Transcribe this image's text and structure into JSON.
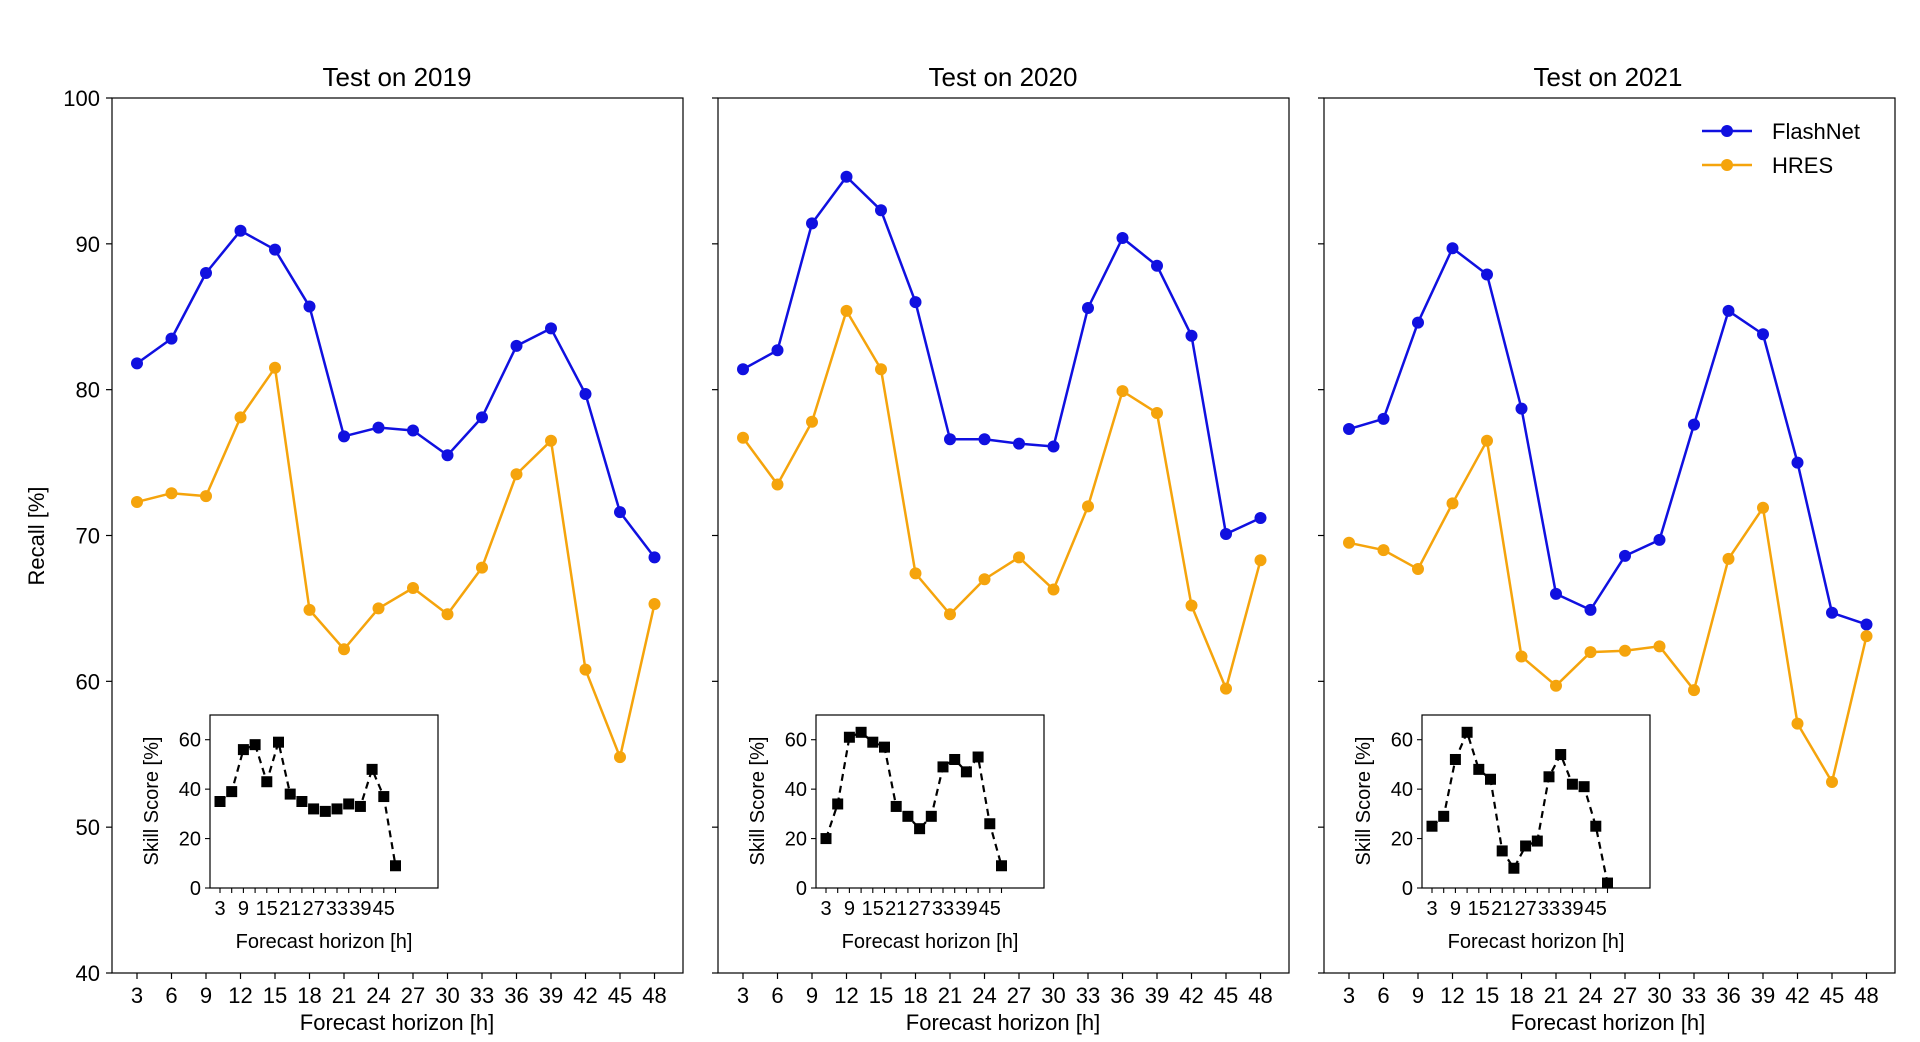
{
  "figure": {
    "y_axis_label": "Recall [%]",
    "x_axis_label": "Forecast horizon [h]",
    "legend": [
      {
        "name": "FlashNet",
        "color": "#1010e0"
      },
      {
        "name": "HRES",
        "color": "#f5a40c"
      }
    ],
    "inset_color": "#000000"
  },
  "chart_data": [
    {
      "type": "line",
      "title": "Test on 2019",
      "xlabel": "Forecast horizon [h]",
      "ylabel": "Recall [%]",
      "x": [
        3,
        6,
        9,
        12,
        15,
        18,
        21,
        24,
        27,
        30,
        33,
        36,
        39,
        42,
        45,
        48
      ],
      "x_tick_labels": [
        "3",
        "6",
        "9",
        "12",
        "15",
        "18",
        "21",
        "24",
        "27",
        "30",
        "33",
        "36",
        "39",
        "42",
        "45",
        "48"
      ],
      "ylim": [
        40,
        100
      ],
      "y_tick_labels": [
        "40",
        "50",
        "60",
        "70",
        "80",
        "90",
        "100"
      ],
      "series": [
        {
          "name": "FlashNet",
          "values": [
            81.8,
            83.5,
            88.0,
            90.9,
            89.6,
            85.7,
            76.8,
            77.4,
            77.2,
            75.5,
            78.1,
            83.0,
            84.2,
            79.7,
            71.6,
            68.5
          ]
        },
        {
          "name": "HRES",
          "values": [
            72.3,
            72.9,
            72.7,
            78.1,
            81.5,
            64.9,
            62.2,
            65.0,
            66.4,
            64.6,
            67.8,
            74.2,
            76.5,
            60.8,
            54.8,
            65.3
          ]
        }
      ],
      "inset": {
        "type": "line",
        "xlabel": "Forecast horizon [h]",
        "ylabel": "Skill Score [%]",
        "x": [
          3,
          6,
          9,
          12,
          15,
          18,
          21,
          24,
          27,
          30,
          33,
          36,
          39,
          42,
          45,
          48
        ],
        "x_tick_labels": [
          "3",
          "9",
          "15",
          "21",
          "27",
          "33",
          "39",
          "45"
        ],
        "ylim": [
          0,
          70
        ],
        "y_tick_labels": [
          "0",
          "20",
          "40",
          "60"
        ],
        "values": [
          35,
          39,
          56,
          58,
          43,
          59,
          38,
          35,
          32,
          31,
          32,
          34,
          33,
          48,
          37,
          9
        ]
      }
    },
    {
      "type": "line",
      "title": "Test on 2020",
      "xlabel": "Forecast horizon [h]",
      "ylabel": "",
      "x": [
        3,
        6,
        9,
        12,
        15,
        18,
        21,
        24,
        27,
        30,
        33,
        36,
        39,
        42,
        45,
        48
      ],
      "x_tick_labels": [
        "3",
        "6",
        "9",
        "12",
        "15",
        "18",
        "21",
        "24",
        "27",
        "30",
        "33",
        "36",
        "39",
        "42",
        "45",
        "48"
      ],
      "ylim": [
        40,
        100
      ],
      "series": [
        {
          "name": "FlashNet",
          "values": [
            81.4,
            82.7,
            91.4,
            94.6,
            92.3,
            86.0,
            76.6,
            76.6,
            76.3,
            76.1,
            85.6,
            90.4,
            88.5,
            83.7,
            70.1,
            71.2
          ]
        },
        {
          "name": "HRES",
          "values": [
            76.7,
            73.5,
            77.8,
            85.4,
            81.4,
            67.4,
            64.6,
            67.0,
            68.5,
            66.3,
            72.0,
            79.9,
            78.4,
            65.2,
            59.5,
            68.3
          ]
        }
      ],
      "inset": {
        "type": "line",
        "xlabel": "Forecast horizon [h]",
        "ylabel": "Skill Score [%]",
        "x": [
          3,
          6,
          9,
          12,
          15,
          18,
          21,
          24,
          27,
          30,
          33,
          36,
          39,
          42,
          45,
          48
        ],
        "x_tick_labels": [
          "3",
          "9",
          "15",
          "21",
          "27",
          "33",
          "39",
          "45"
        ],
        "ylim": [
          0,
          70
        ],
        "y_tick_labels": [
          "0",
          "20",
          "40",
          "60"
        ],
        "values": [
          20,
          34,
          61,
          63,
          59,
          57,
          33,
          29,
          24,
          29,
          49,
          52,
          47,
          53,
          26,
          9
        ]
      }
    },
    {
      "type": "line",
      "title": "Test on 2021",
      "xlabel": "Forecast horizon [h]",
      "ylabel": "",
      "x": [
        3,
        6,
        9,
        12,
        15,
        18,
        21,
        24,
        27,
        30,
        33,
        36,
        39,
        42,
        45,
        48
      ],
      "x_tick_labels": [
        "3",
        "6",
        "9",
        "12",
        "15",
        "18",
        "21",
        "24",
        "27",
        "30",
        "33",
        "36",
        "39",
        "42",
        "45",
        "48"
      ],
      "ylim": [
        40,
        100
      ],
      "legend_location": "top-right",
      "series": [
        {
          "name": "FlashNet",
          "values": [
            77.3,
            78.0,
            84.6,
            89.7,
            87.9,
            78.7,
            66.0,
            64.9,
            68.6,
            69.7,
            77.6,
            85.4,
            83.8,
            75.0,
            64.7,
            63.9
          ]
        },
        {
          "name": "HRES",
          "values": [
            69.5,
            69.0,
            67.7,
            72.2,
            76.5,
            61.7,
            59.7,
            62.0,
            62.1,
            62.4,
            59.4,
            68.4,
            71.9,
            57.1,
            53.1,
            63.1
          ]
        }
      ],
      "inset": {
        "type": "line",
        "xlabel": "Forecast horizon [h]",
        "ylabel": "Skill Score [%]",
        "x": [
          3,
          6,
          9,
          12,
          15,
          18,
          21,
          24,
          27,
          30,
          33,
          36,
          39,
          42,
          45,
          48
        ],
        "x_tick_labels": [
          "3",
          "9",
          "15",
          "21",
          "27",
          "33",
          "39",
          "45"
        ],
        "ylim": [
          0,
          70
        ],
        "y_tick_labels": [
          "0",
          "20",
          "40",
          "60"
        ],
        "values": [
          25,
          29,
          52,
          63,
          48,
          44,
          15,
          8,
          17,
          19,
          45,
          54,
          42,
          41,
          25,
          2
        ]
      }
    }
  ]
}
